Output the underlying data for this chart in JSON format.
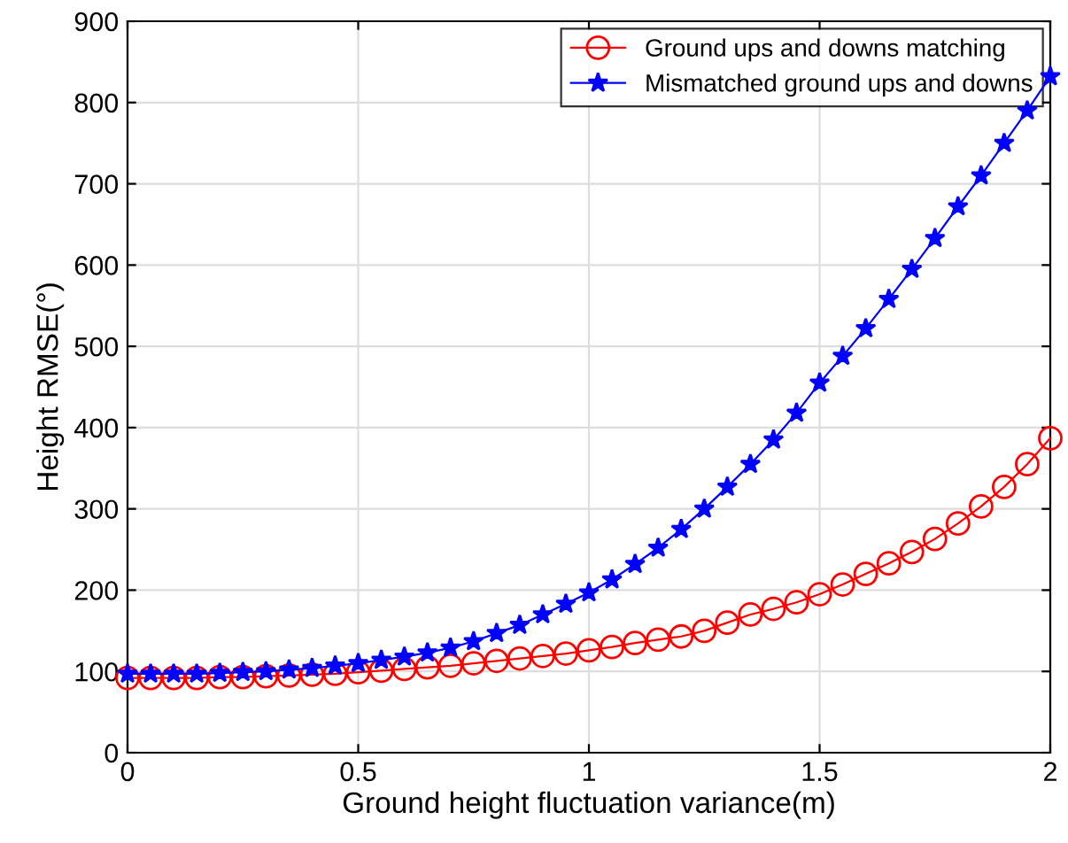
{
  "chart_data": {
    "type": "line",
    "xlabel": "Ground height fluctuation variance(m)",
    "ylabel": "Height RMSE(°)",
    "x": [
      0,
      0.05,
      0.1,
      0.15,
      0.2,
      0.25,
      0.3,
      0.35,
      0.4,
      0.45,
      0.5,
      0.55,
      0.6,
      0.65,
      0.7,
      0.75,
      0.8,
      0.85,
      0.9,
      0.95,
      1.0,
      1.05,
      1.1,
      1.15,
      1.2,
      1.25,
      1.3,
      1.35,
      1.4,
      1.45,
      1.5,
      1.55,
      1.6,
      1.65,
      1.7,
      1.75,
      1.8,
      1.85,
      1.9,
      1.95,
      2.0
    ],
    "series": [
      {
        "name": "Ground ups and downs matching",
        "color": "#ff0000",
        "marker": "circle",
        "values": [
          92,
          92,
          92,
          92,
          93,
          93,
          94,
          95,
          96,
          97,
          99,
          101,
          103,
          105,
          107,
          110,
          113,
          116,
          119,
          122,
          126,
          130,
          135,
          139,
          143,
          150,
          160,
          170,
          177,
          185,
          195,
          207,
          220,
          233,
          247,
          263,
          282,
          303,
          327,
          355,
          387
        ]
      },
      {
        "name": "Mismatched ground ups and downs",
        "color": "#0000ff",
        "marker": "star",
        "values": [
          97,
          97,
          97,
          97,
          98,
          99,
          100,
          102,
          104,
          107,
          110,
          114,
          118,
          123,
          129,
          137,
          147,
          157,
          170,
          183,
          197,
          213,
          232,
          252,
          275,
          300,
          327,
          355,
          385,
          418,
          455,
          488,
          522,
          558,
          595,
          633,
          672,
          710,
          750,
          790,
          832
        ]
      }
    ],
    "xlim": [
      0,
      2
    ],
    "xticks": [
      0,
      0.5,
      1,
      1.5,
      2
    ],
    "ylim": [
      0,
      900
    ],
    "yticks": [
      0,
      100,
      200,
      300,
      400,
      500,
      600,
      700,
      800,
      900
    ],
    "grid": true,
    "legend": "top right",
    "line_style": "solid"
  }
}
